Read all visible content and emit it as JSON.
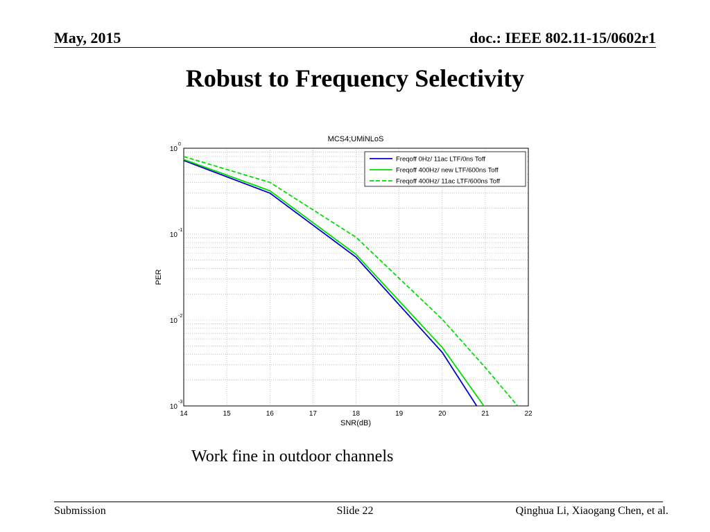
{
  "header": {
    "date": "May, 2015",
    "doc": "doc.: IEEE 802.11-15/0602r1"
  },
  "slide": {
    "title": "Robust to Frequency Selectivity",
    "caption": "Work fine in outdoor channels"
  },
  "footer": {
    "left": "Submission",
    "center": "Slide 22",
    "right": "Qinghua Li, Xiaogang Chen, et al."
  },
  "chart_data": {
    "type": "line",
    "title": "MCS4;UMiNLoS",
    "xlabel": "SNR(dB)",
    "ylabel": "PER",
    "xlim": [
      14,
      22
    ],
    "ylim": [
      0.001,
      1
    ],
    "yscale": "log",
    "grid": true,
    "legend_position": "top-right",
    "x_ticks": [
      "14",
      "15",
      "16",
      "17",
      "18",
      "19",
      "20",
      "21",
      "22"
    ],
    "y_ticks": [
      {
        "value": 1,
        "base": "10",
        "exp": "0"
      },
      {
        "value": 0.1,
        "base": "10",
        "exp": "-1"
      },
      {
        "value": 0.01,
        "base": "10",
        "exp": "-2"
      },
      {
        "value": 0.001,
        "base": "10",
        "exp": "-3"
      }
    ],
    "series": [
      {
        "name": "Freqoff 0Hz/ 11ac LTF/0ns Toff",
        "color": "#0000cc",
        "dash": "solid",
        "x": [
          14,
          16,
          18,
          20,
          20.8
        ],
        "y": [
          0.72,
          0.3,
          0.054,
          0.0042,
          0.001
        ]
      },
      {
        "name": "Freqoff 400Hz/ new LTF/600ns Toff",
        "color": "#00dd00",
        "dash": "solid",
        "x": [
          14,
          16,
          18,
          20,
          21
        ],
        "y": [
          0.74,
          0.32,
          0.058,
          0.0048,
          0.00095
        ]
      },
      {
        "name": "Freqoff 400Hz/ 11ac LTF/600ns Toff",
        "color": "#00dd00",
        "dash": "dashed",
        "x": [
          14,
          16,
          18,
          20,
          21,
          21.75
        ],
        "y": [
          0.8,
          0.4,
          0.092,
          0.0102,
          0.0028,
          0.001
        ]
      }
    ]
  }
}
